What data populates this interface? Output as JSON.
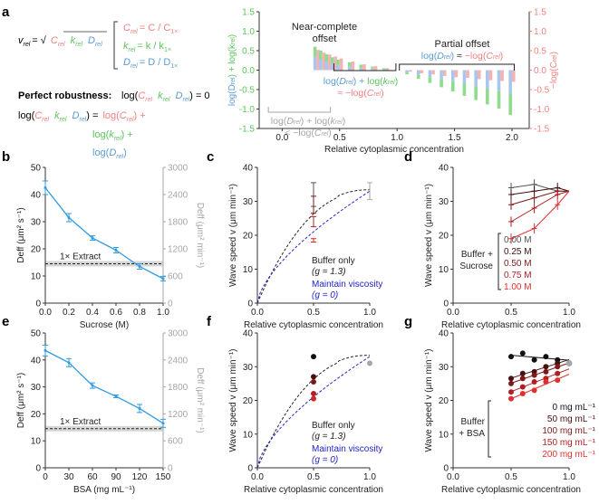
{
  "colors": {
    "red": "#f08080",
    "green": "#5cc45c",
    "blue": "#5b9bd5",
    "lightBlue": "#a9c7ee",
    "lightRed": "#f4b2b2",
    "lightGreen": "#8fdc8f",
    "gray": "#a6a6a6",
    "axis": "#333333",
    "sucroseBlue": "#2e9be0",
    "dash": "#2222cc"
  },
  "panel_labels": {
    "a": "a",
    "b": "b",
    "c": "c",
    "d": "d",
    "e": "e",
    "f": "f",
    "g": "g"
  },
  "panel_a_text": {
    "v_rel": "v",
    "v_rel_sub": "rel",
    "eq_sign": "= √",
    "c_rel": "C",
    "c_rel_def": "= C / C",
    "k_rel_def": "= k / k",
    "d_rel_def": "= D / D",
    "rel_sub": "rel",
    "one_x_sub": "1×",
    "robust_title": "Perfect robustness:",
    "robust_eq_prefix": "log(",
    "robust_eq_suffix": ") = 0",
    "log_open": "log(",
    "close_eq": ") =",
    "log_c": "log(",
    "close_plus": ") +",
    "close": ")",
    "k": "k",
    "D": "D",
    "near_complete": "Near-complete",
    "offset": "offset",
    "partial_offset": "Partial offset",
    "log_d_open": "log(",
    "plus_log_k": ") + log(",
    "approx_neg_log_c": "≈ −log(",
    "approx": ") ≈ −log(",
    "gt": "<  −log(",
    "gray_expr_1": "log(",
    "ylabel_left_1": "log(",
    "ylabel_left_2": ") + log(",
    "ylabel_right": "−log(C",
    "ylabel_right_sub": "rel",
    "ylabel_right_close": ")"
  },
  "chart_data": [
    {
      "id": "a",
      "type": "bar",
      "xlabel": "Relative cytoplasmic concentration",
      "ylabel_left": "log(Drel) + log(krel)",
      "ylabel_right": "−log(Crel)",
      "xlim": [
        -0.2,
        2.15
      ],
      "ylim": [
        -1.5,
        1.5
      ],
      "xticks": [
        "0.0",
        "0.5",
        "1.0",
        "1.5",
        "2.0"
      ],
      "yticks": [
        "-1.5",
        "-1.0",
        "-0.5",
        "0.0",
        "0.5",
        "1.0",
        "1.5"
      ],
      "x": [
        0.3,
        0.35,
        0.4,
        0.45,
        0.5,
        0.6,
        0.7,
        0.8,
        0.9,
        1.0,
        1.1,
        1.2,
        1.3,
        1.4,
        1.5,
        1.6,
        1.7,
        1.8,
        1.9,
        2.0
      ],
      "series": [
        {
          "name": "log(Drel)",
          "values": [
            0.35,
            0.28,
            0.22,
            0.17,
            0.13,
            0.09,
            0.06,
            0.04,
            0.02,
            0.0,
            -0.06,
            -0.12,
            -0.18,
            -0.24,
            -0.3,
            -0.36,
            -0.42,
            -0.48,
            -0.54,
            -0.6
          ]
        },
        {
          "name": "log(krel)",
          "values": [
            0.25,
            0.22,
            0.19,
            0.16,
            0.14,
            0.11,
            0.08,
            0.05,
            0.03,
            0.0,
            -0.05,
            -0.1,
            -0.15,
            -0.2,
            -0.25,
            -0.3,
            -0.35,
            -0.4,
            -0.45,
            -0.55
          ]
        },
        {
          "name": "−log(Crel)",
          "values": [
            0.52,
            0.45,
            0.4,
            0.35,
            0.3,
            0.22,
            0.15,
            0.1,
            0.05,
            0.0,
            -0.04,
            -0.08,
            -0.11,
            -0.15,
            -0.18,
            -0.2,
            -0.23,
            -0.26,
            -0.28,
            -0.3
          ]
        }
      ]
    },
    {
      "id": "b",
      "type": "line",
      "xlabel": "Sucrose (M)",
      "ylabel": "Deff (μm² s⁻¹)",
      "ylabel_right": "Deff (μm² min⁻¹)",
      "x": [
        0.0,
        0.2,
        0.4,
        0.6,
        0.8,
        1.0
      ],
      "values": [
        42.5,
        31.5,
        24,
        19.5,
        13.5,
        9
      ],
      "errors": [
        2.5,
        1.5,
        0.8,
        1,
        1,
        0.8
      ],
      "xlim": [
        0,
        1
      ],
      "ylim": [
        0,
        50
      ],
      "ylim_right": [
        0,
        3000
      ],
      "xticks": [
        "0.0",
        "0.2",
        "0.4",
        "0.6",
        "0.8",
        "1.0"
      ],
      "yticks": [
        "0",
        "10",
        "20",
        "30",
        "40",
        "50"
      ],
      "yticks_right": [
        "0",
        "600",
        "1200",
        "1800",
        "2400",
        "3000"
      ],
      "extract_level": 14.5,
      "extract_label": "1× Extract"
    },
    {
      "id": "c",
      "type": "scatter",
      "xlabel": "Relative cytoplasmic concentration",
      "ylabel": "Wave speed v (μm min⁻¹)",
      "xlim": [
        0,
        1
      ],
      "ylim": [
        0,
        40
      ],
      "xticks": [
        "0.0",
        "0.5",
        "1.0"
      ],
      "yticks": [
        "0",
        "10",
        "20",
        "30",
        "40"
      ],
      "points": [
        {
          "x": 0.5,
          "y": 32,
          "err": 3.5,
          "color": "#555555"
        },
        {
          "x": 0.5,
          "y": 29,
          "err": 2.5,
          "color": "#7a1a1a"
        },
        {
          "x": 0.5,
          "y": 24,
          "err": 1.5,
          "color": "#b02020"
        },
        {
          "x": 0.5,
          "y": 18.5,
          "err": 0.5,
          "color": "#e02020"
        },
        {
          "x": 1.0,
          "y": 33,
          "err": 2.5,
          "color": "#a6a6a6"
        }
      ],
      "legend": [
        {
          "label": "Buffer only",
          "sub": "(g = 1.3)",
          "color": "#222222"
        },
        {
          "label": "Maintain viscosity",
          "sub": "(g = 0)",
          "color": "#2222cc"
        }
      ]
    },
    {
      "id": "d",
      "type": "line",
      "xlabel": "Relative cytoplasmic concentration",
      "ylabel": "Wave speed v (μm min⁻¹)",
      "xlim": [
        0,
        1
      ],
      "ylim": [
        0,
        40
      ],
      "xticks": [
        "0.0",
        "0.5",
        "1.0"
      ],
      "yticks": [
        "0",
        "10",
        "20",
        "30",
        "40"
      ],
      "x": [
        0.5,
        0.7,
        0.9
      ],
      "series": [
        {
          "name": "0.00 M",
          "color": "#555555",
          "values": [
            34,
            35,
            33
          ]
        },
        {
          "name": "0.25 M",
          "color": "#3a1010",
          "values": [
            32,
            33,
            34
          ]
        },
        {
          "name": "0.50 M",
          "color": "#7a1a1a",
          "values": [
            29,
            31,
            33
          ]
        },
        {
          "name": "0.75 M",
          "color": "#b02020",
          "values": [
            24,
            28,
            32
          ]
        },
        {
          "name": "1.00 M",
          "color": "#e03030",
          "values": [
            19,
            22,
            29
          ]
        }
      ],
      "gray_point": {
        "x": 1.0,
        "y": 33
      },
      "legend_title": "Buffer +\nSucrose"
    },
    {
      "id": "e",
      "type": "line",
      "xlabel": "BSA (mg mL⁻¹)",
      "ylabel": "Deff (μm² s⁻¹)",
      "ylabel_right": "Deff (μm² min⁻¹)",
      "x": [
        0,
        30,
        60,
        90,
        120,
        150
      ],
      "values": [
        43.5,
        39,
        30.5,
        26.5,
        22,
        16.5
      ],
      "errors": [
        2,
        1.5,
        1,
        0.5,
        1.5,
        1.5
      ],
      "xlim": [
        0,
        150
      ],
      "ylim": [
        0,
        50
      ],
      "ylim_right": [
        0,
        3000
      ],
      "xticks": [
        "0",
        "30",
        "60",
        "90",
        "120",
        "150"
      ],
      "yticks": [
        "0",
        "10",
        "20",
        "30",
        "40",
        "50"
      ],
      "yticks_right": [
        "0",
        "600",
        "1200",
        "1800",
        "2400",
        "3000"
      ],
      "extract_level": 14.5,
      "extract_label": "1× Extract"
    },
    {
      "id": "f",
      "type": "scatter",
      "xlabel": "Relative cytoplasmic concentration",
      "ylabel": "Wave speed v (μm min⁻¹)",
      "xlim": [
        0,
        1
      ],
      "ylim": [
        0,
        40
      ],
      "xticks": [
        "0.0",
        "0.5",
        "1.0"
      ],
      "yticks": [
        "0",
        "10",
        "20",
        "30",
        "40"
      ],
      "points": [
        {
          "x": 0.5,
          "y": 33,
          "color": "#111111"
        },
        {
          "x": 0.5,
          "y": 27,
          "color": "#4a1010"
        },
        {
          "x": 0.5,
          "y": 25.5,
          "color": "#7a1a1a"
        },
        {
          "x": 0.5,
          "y": 22,
          "color": "#b02020"
        },
        {
          "x": 0.5,
          "y": 20.5,
          "color": "#d02828"
        },
        {
          "x": 1.0,
          "y": 31,
          "color": "#a6a6a6"
        }
      ],
      "legend": [
        {
          "label": "Buffer only",
          "sub": "(g = 1.3)",
          "color": "#222222"
        },
        {
          "label": "Maintain viscosity",
          "sub": "(g = 0)",
          "color": "#2222cc"
        }
      ]
    },
    {
      "id": "g",
      "type": "scatter",
      "xlabel": "Relative cytoplasmic concentration",
      "ylabel": "Wave speed v (μm min⁻¹)",
      "xlim": [
        0,
        1
      ],
      "ylim": [
        0,
        40
      ],
      "xticks": [
        "0.0",
        "0.5",
        "1.0"
      ],
      "yticks": [
        "0",
        "10",
        "20",
        "30",
        "40"
      ],
      "series": [
        {
          "name": "0 mg mL⁻¹",
          "color": "#111111",
          "x": [
            0.5,
            0.6,
            0.7,
            0.8,
            0.9
          ],
          "values": [
            33,
            34,
            32,
            33,
            32
          ]
        },
        {
          "name": "50 mg mL⁻¹",
          "color": "#4a1010",
          "x": [
            0.5,
            0.6,
            0.7,
            0.8,
            0.9
          ],
          "values": [
            26.5,
            28,
            28.5,
            30,
            31
          ]
        },
        {
          "name": "100 mg mL⁻¹",
          "color": "#7a1a1a",
          "x": [
            0.5,
            0.6,
            0.7,
            0.8,
            0.9
          ],
          "values": [
            25,
            26.5,
            27.5,
            28.5,
            30
          ]
        },
        {
          "name": "150 mg mL⁻¹",
          "color": "#b02020",
          "x": [
            0.5,
            0.6,
            0.7,
            0.8,
            0.9
          ],
          "values": [
            22.5,
            24,
            25.5,
            26.5,
            28
          ]
        },
        {
          "name": "200 mg mL⁻¹",
          "color": "#e03030",
          "x": [
            0.5,
            0.6,
            0.7,
            0.8,
            0.9
          ],
          "values": [
            20.5,
            22,
            23,
            25.5,
            26
          ]
        }
      ],
      "gray_point": {
        "x": 1.0,
        "y": 31
      },
      "legend_title": "Buffer\n+ BSA"
    }
  ]
}
